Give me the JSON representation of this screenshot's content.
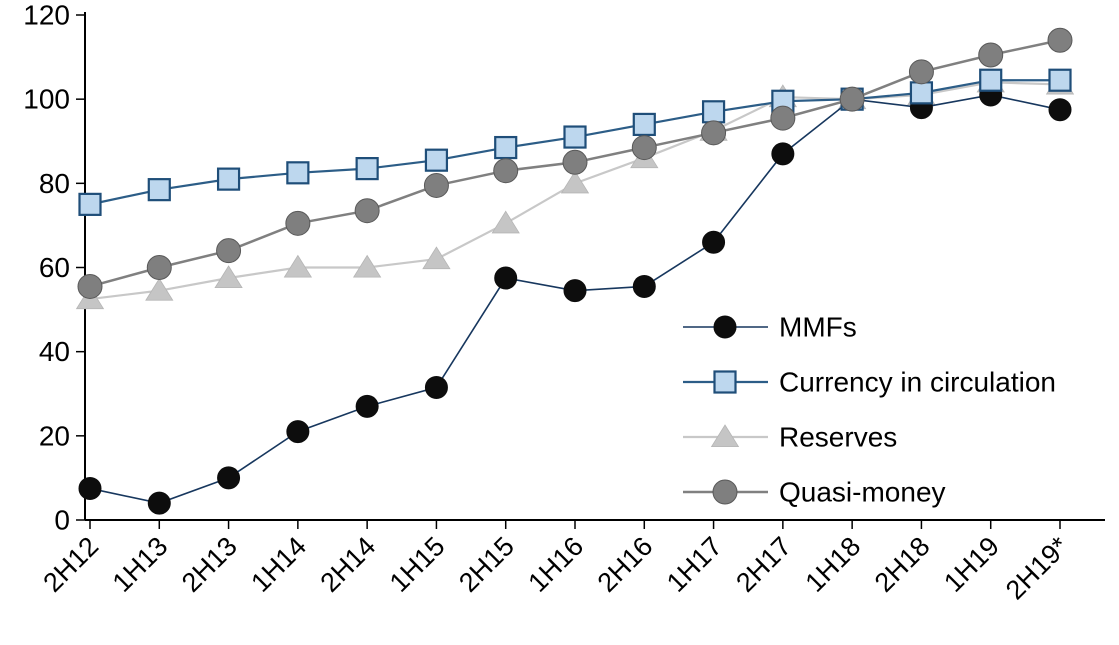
{
  "chart_data": {
    "type": "line",
    "title": "",
    "xlabel": "",
    "ylabel": "",
    "ylim": [
      0,
      120
    ],
    "yticks": [
      0,
      20,
      40,
      60,
      80,
      100,
      120
    ],
    "grid": false,
    "legend_position": "inside-right",
    "categories": [
      "2H12",
      "1H13",
      "2H13",
      "1H14",
      "2H14",
      "1H15",
      "2H15",
      "1H16",
      "2H16",
      "1H17",
      "2H17",
      "1H18",
      "2H18",
      "1H19",
      "2H19*"
    ],
    "series": [
      {
        "name": "MMFs",
        "marker": "circle",
        "marker_size": 11,
        "line_color": "#17375e",
        "line_width": 1.6,
        "marker_fill": "#0d0d0d",
        "marker_stroke": "#0d0d0d",
        "values": [
          7.5,
          4,
          10,
          21,
          27,
          31.5,
          57.5,
          54.5,
          55.5,
          66,
          87,
          100,
          98,
          101,
          97.5
        ]
      },
      {
        "name": "Currency in circulation",
        "marker": "square",
        "marker_size": 10.5,
        "line_color": "#2c5d87",
        "line_width": 2.2,
        "marker_fill": "#bdd7ee",
        "marker_stroke": "#1f4e79",
        "values": [
          75,
          78.5,
          81,
          82.5,
          83.5,
          85.5,
          88.5,
          91,
          94,
          97,
          99.5,
          100,
          101.5,
          104.5,
          104.5
        ]
      },
      {
        "name": "Reserves",
        "marker": "triangle",
        "marker_size": 12,
        "line_color": "#c8c8c8",
        "line_width": 2.2,
        "marker_fill": "#c5c5c5",
        "marker_stroke": "#b5b5b5",
        "values": [
          52.5,
          54.5,
          57.5,
          60,
          60,
          62,
          70.5,
          80,
          86,
          92.5,
          100.5,
          100,
          101,
          104,
          103.5
        ]
      },
      {
        "name": "Quasi-money",
        "marker": "circle",
        "marker_size": 12,
        "line_color": "#808080",
        "line_width": 2.5,
        "marker_fill": "#7f7f7f",
        "marker_stroke": "#595959",
        "values": [
          55.5,
          60,
          64,
          70.5,
          73.5,
          79.5,
          83,
          85,
          88.5,
          92,
          95.5,
          100,
          106.5,
          110.5,
          114
        ]
      }
    ]
  }
}
